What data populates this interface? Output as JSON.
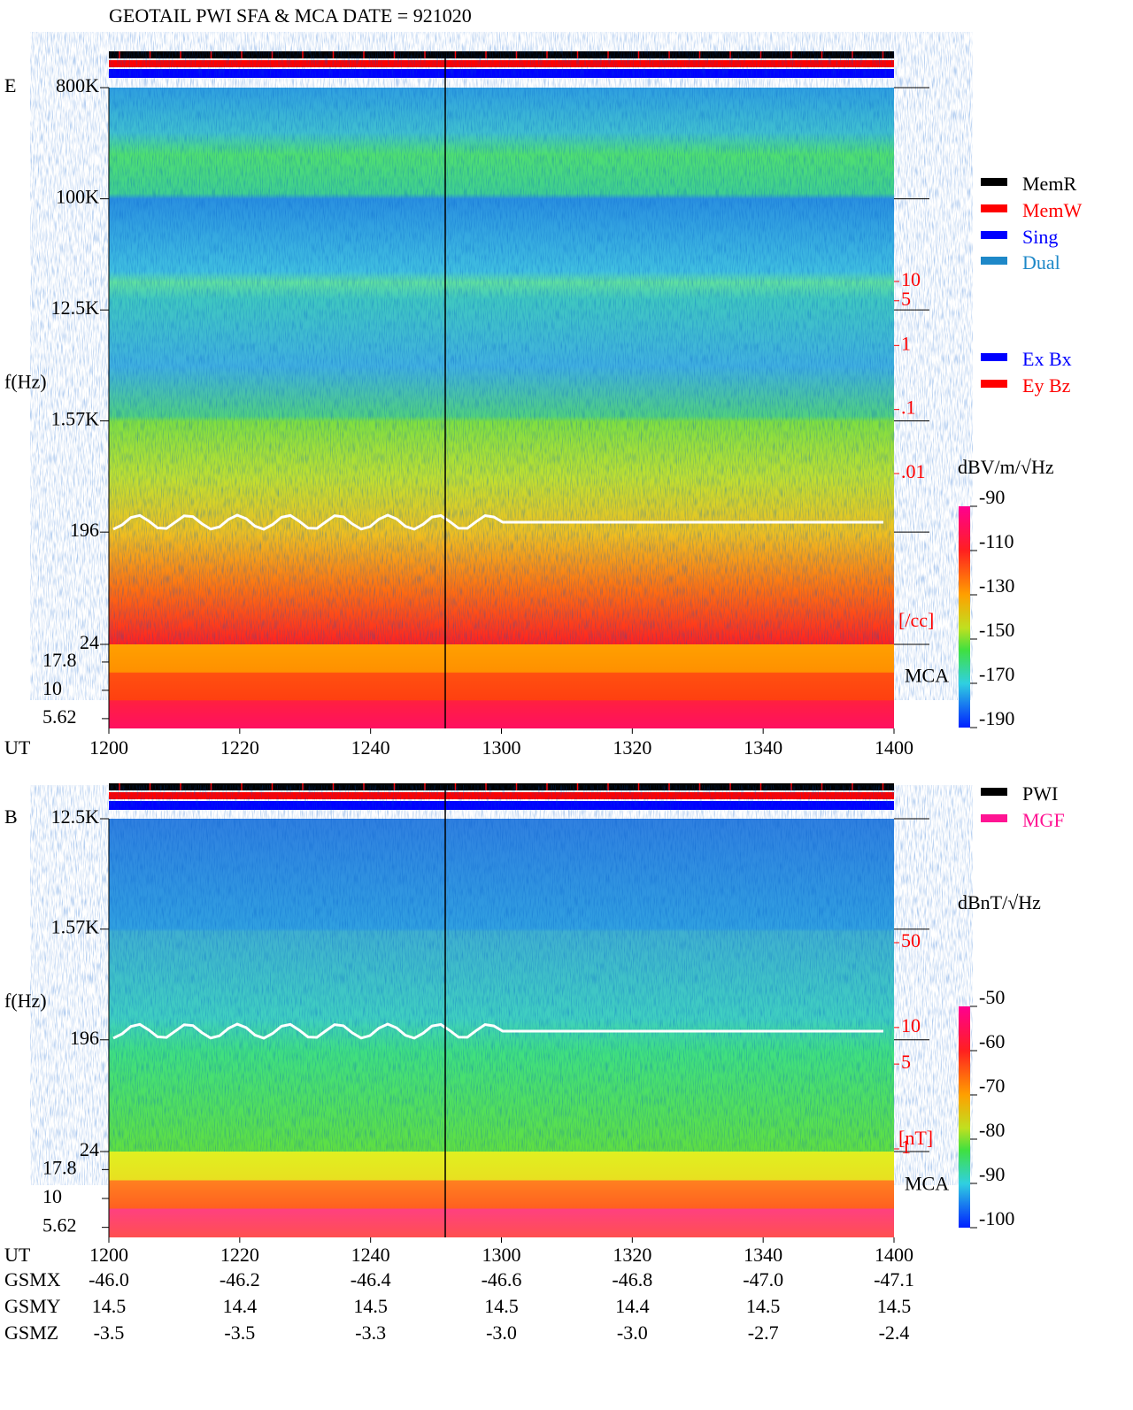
{
  "title": "GEOTAIL   PWI SFA & MCA   DATE = 921020",
  "status_legend": [
    {
      "name": "MemR",
      "color": "#000000"
    },
    {
      "name": "MemW",
      "color": "#ff0000"
    },
    {
      "name": "Sing",
      "color": "#0000ff"
    },
    {
      "name": "Dual",
      "color": "#1e88c8"
    }
  ],
  "component_legend": [
    {
      "name": "Ex Bx",
      "color": "#0000ff"
    },
    {
      "name": "Ey Bz",
      "color": "#ff0000"
    }
  ],
  "source_legend": [
    {
      "name": "PWI",
      "color": "#000000"
    },
    {
      "name": "MGF",
      "color": "#ff1493"
    }
  ],
  "panels": [
    {
      "label": "E",
      "ylabel": "f(Hz)",
      "log": true,
      "ylim": [
        24,
        800000
      ],
      "yticks": [
        {
          "value": 800000,
          "label": "800K"
        },
        {
          "value": 100000,
          "label": "100K"
        },
        {
          "value": 12500,
          "label": "12.5K"
        },
        {
          "value": 1570,
          "label": "1.57K"
        },
        196,
        24
      ],
      "mca_label": "MCA",
      "mca_ylim": [
        4.6,
        25.5
      ],
      "mca_yticks": [
        17.8,
        10,
        5.62
      ],
      "density_unit": "[/cc]",
      "density_ylim": [
        0.01,
        10
      ],
      "density_ticks": [
        10,
        5,
        1,
        {
          "value": 0.1,
          "label": ".1"
        },
        {
          "value": 0.01,
          "label": ".01"
        }
      ],
      "colorbar_unit": "dBV/m/√Hz",
      "colorbar_lim": [
        -190,
        -90
      ],
      "colorbar_ticks": [
        -90,
        -110,
        -130,
        -150,
        -170,
        -190
      ],
      "xlabel": "UT",
      "xticks": [
        "1200",
        "1220",
        "1240",
        "1300",
        "1320",
        "1340",
        "1400"
      ]
    },
    {
      "label": "B",
      "ylabel": "f(Hz)",
      "log": true,
      "ylim": [
        24,
        12500
      ],
      "yticks": [
        {
          "value": 12500,
          "label": "12.5K"
        },
        {
          "value": 1570,
          "label": "1.57K"
        },
        196,
        24
      ],
      "mca_label": "MCA",
      "mca_ylim": [
        4.6,
        25.5
      ],
      "mca_yticks": [
        17.8,
        10,
        5.62
      ],
      "density_unit": "[nT]",
      "density_ylim": [
        1,
        50
      ],
      "density_ticks": [
        50,
        10,
        5,
        1
      ],
      "colorbar_unit": "dBnT/√Hz",
      "colorbar_lim": [
        -100,
        -50
      ],
      "colorbar_ticks": [
        -50,
        -60,
        -70,
        -80,
        -90,
        -100
      ],
      "xlabel": "UT",
      "xticks": [
        "1200",
        "1220",
        "1240",
        "1300",
        "1320",
        "1340",
        "1400"
      ]
    }
  ],
  "orbit": [
    {
      "name": "GSMX",
      "values": [
        "-46.0",
        "-46.2",
        "-46.4",
        "-46.6",
        "-46.8",
        "-47.0",
        "-47.1"
      ]
    },
    {
      "name": "GSMY",
      "values": [
        "14.5",
        "14.4",
        "14.5",
        "14.5",
        "14.4",
        "14.5",
        "14.5"
      ]
    },
    {
      "name": "GSMZ",
      "values": [
        "-3.5",
        "-3.5",
        "-3.3",
        "-3.0",
        "-3.0",
        "-2.7",
        "-2.4"
      ]
    }
  ]
}
